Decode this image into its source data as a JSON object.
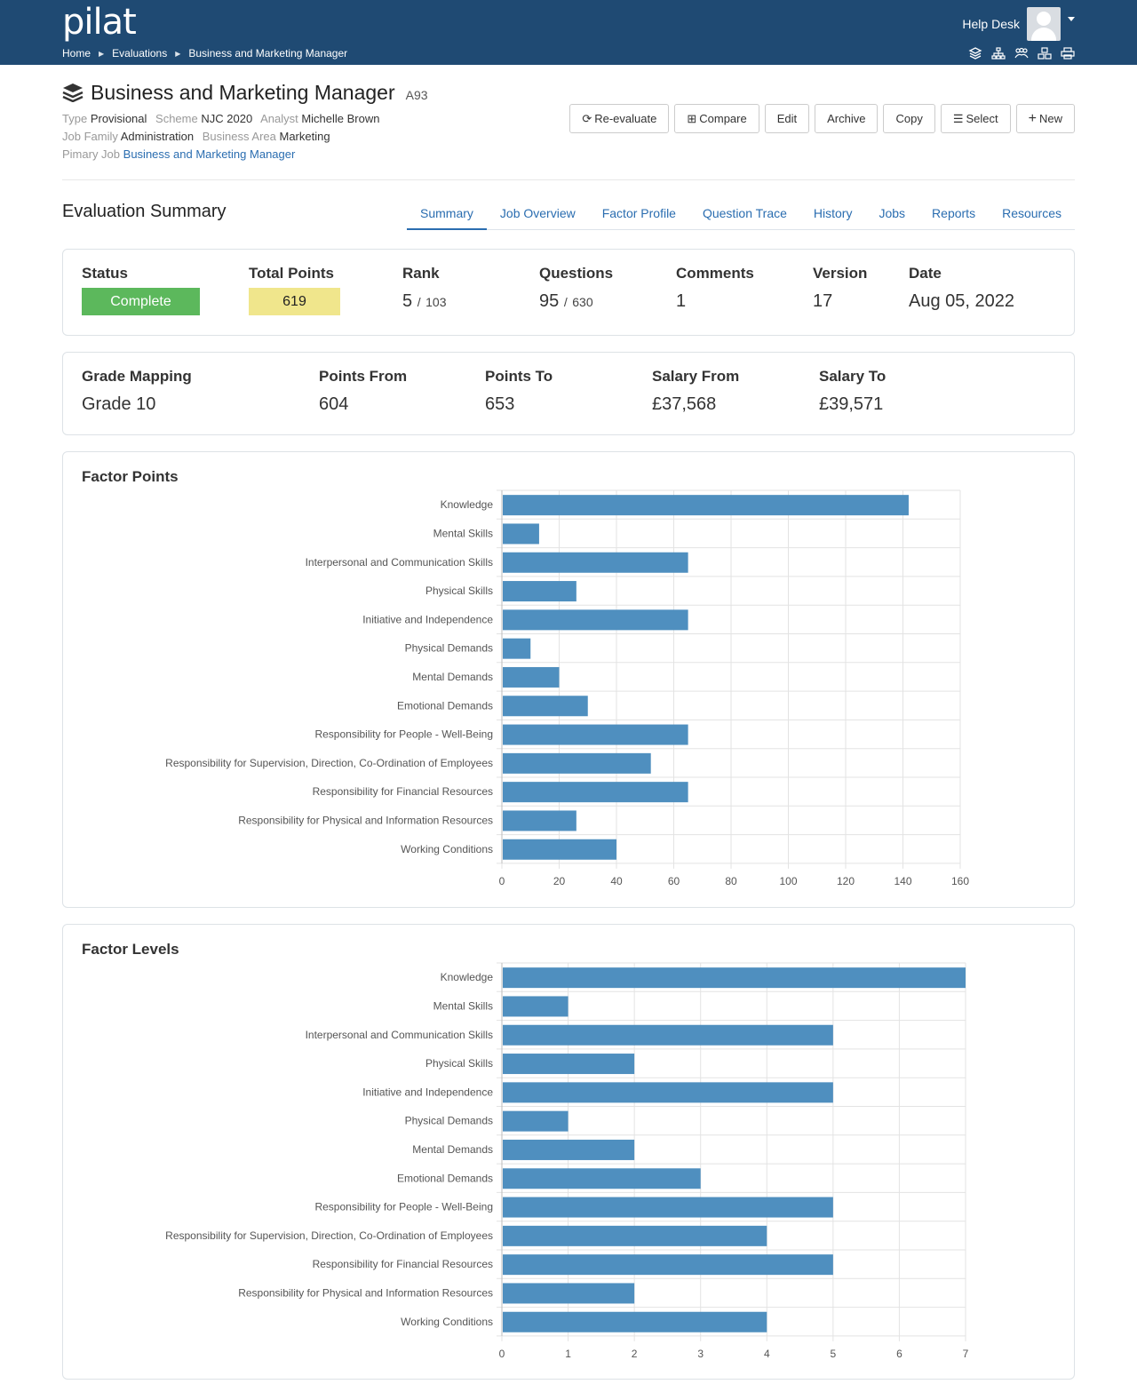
{
  "header": {
    "logo": "pilat",
    "breadcrumb": [
      "Home",
      "Evaluations",
      "Business and Marketing Manager"
    ],
    "help_desk": "Help Desk"
  },
  "title": {
    "name": "Business and Marketing Manager",
    "code": "A93",
    "type_label": "Type",
    "type_value": "Provisional",
    "scheme_label": "Scheme",
    "scheme_value": "NJC 2020",
    "analyst_label": "Analyst",
    "analyst_value": "Michelle Brown",
    "family_label": "Job Family",
    "family_value": "Administration",
    "area_label": "Business Area",
    "area_value": "Marketing",
    "primary_label": "Pimary Job",
    "primary_value": "Business and Marketing Manager"
  },
  "actions": {
    "reevaluate": "Re-evaluate",
    "compare": "Compare",
    "edit": "Edit",
    "archive": "Archive",
    "copy": "Copy",
    "select": "Select",
    "new": "New"
  },
  "section_title": "Evaluation Summary",
  "tabs": [
    "Summary",
    "Job Overview",
    "Factor Profile",
    "Question Trace",
    "History",
    "Jobs",
    "Reports",
    "Resources"
  ],
  "summary": {
    "status_label": "Status",
    "status_value": "Complete",
    "points_label": "Total Points",
    "points_value": "619",
    "rank_label": "Rank",
    "rank_value": "5",
    "rank_sep": "/",
    "rank_total": "103",
    "questions_label": "Questions",
    "questions_value": "95",
    "questions_sep": "/",
    "questions_total": "630",
    "comments_label": "Comments",
    "comments_value": "1",
    "version_label": "Version",
    "version_value": "17",
    "date_label": "Date",
    "date_value": "Aug 05, 2022"
  },
  "grade": {
    "mapping_label": "Grade Mapping",
    "mapping_value": "Grade 10",
    "from_label": "Points From",
    "from_value": "604",
    "to_label": "Points To",
    "to_value": "653",
    "sal_from_label": "Salary From",
    "sal_from_value": "£37,568",
    "sal_to_label": "Salary To",
    "sal_to_value": "£39,571"
  },
  "colors": {
    "bar": "#4f8fbf",
    "header": "#1f4a73",
    "link": "#2a6db0",
    "complete": "#5cb85c",
    "points": "#f0e68c"
  },
  "chart_data": [
    {
      "type": "bar",
      "orientation": "horizontal",
      "title": "Factor Points",
      "categories": [
        "Knowledge",
        "Mental Skills",
        "Interpersonal and Communication Skills",
        "Physical Skills",
        "Initiative and Independence",
        "Physical Demands",
        "Mental Demands",
        "Emotional Demands",
        "Responsibility for People - Well-Being",
        "Responsibility for Supervision, Direction, Co-Ordination of Employees",
        "Responsibility for Financial Resources",
        "Responsibility for Physical and Information Resources",
        "Working Conditions"
      ],
      "values": [
        142,
        13,
        65,
        26,
        65,
        10,
        20,
        30,
        65,
        52,
        65,
        26,
        40
      ],
      "xlim": [
        0,
        160
      ],
      "ticks": [
        0,
        20,
        40,
        60,
        80,
        100,
        120,
        140,
        160
      ],
      "grid": true
    },
    {
      "type": "bar",
      "orientation": "horizontal",
      "title": "Factor Levels",
      "categories": [
        "Knowledge",
        "Mental Skills",
        "Interpersonal and Communication Skills",
        "Physical Skills",
        "Initiative and Independence",
        "Physical Demands",
        "Mental Demands",
        "Emotional Demands",
        "Responsibility for People - Well-Being",
        "Responsibility for Supervision, Direction, Co-Ordination of Employees",
        "Responsibility for Financial Resources",
        "Responsibility for Physical and Information Resources",
        "Working Conditions"
      ],
      "values": [
        7,
        1,
        5,
        2,
        5,
        1,
        2,
        3,
        5,
        4,
        5,
        2,
        4
      ],
      "xlim": [
        0,
        7
      ],
      "ticks": [
        0,
        1,
        2,
        3,
        4,
        5,
        6,
        7
      ],
      "grid": true
    }
  ]
}
